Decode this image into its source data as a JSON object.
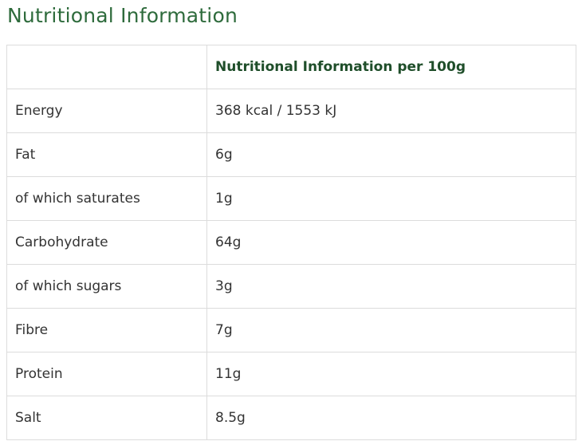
{
  "page": {
    "title": "Nutritional Information"
  },
  "table": {
    "headers": [
      "",
      "Nutritional Information per 100g"
    ],
    "rows": [
      {
        "nutrient": "Energy",
        "value": "368 kcal / 1553 kJ"
      },
      {
        "nutrient": "Fat",
        "value": "6g"
      },
      {
        "nutrient": "of which saturates",
        "value": "1g"
      },
      {
        "nutrient": "Carbohydrate",
        "value": "64g"
      },
      {
        "nutrient": "of which sugars",
        "value": "3g"
      },
      {
        "nutrient": "Fibre",
        "value": "7g"
      },
      {
        "nutrient": "Protein",
        "value": "11g"
      },
      {
        "nutrient": "Salt",
        "value": "8.5g"
      }
    ]
  },
  "colors": {
    "title": "#2e6b3c",
    "header_text": "#1f4e2a",
    "body_text": "#333333",
    "border": "#dcdcdc"
  }
}
